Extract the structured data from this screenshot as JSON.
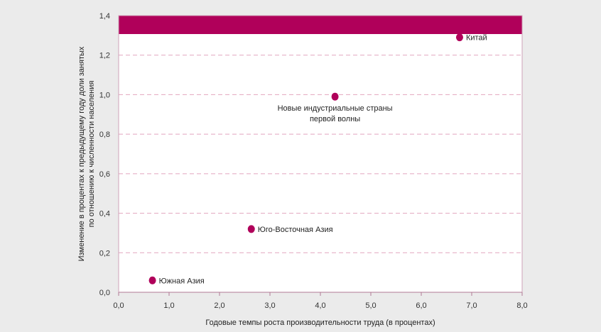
{
  "chart_data": {
    "type": "scatter",
    "title": "",
    "xlabel": "Годовые темпы роста производительности труда (в процентах)",
    "ylabel_lines": [
      "Изменение в процентах к предыдущему году доли занятых",
      "по отношению к численности населения"
    ],
    "xlim": [
      0,
      8
    ],
    "ylim": [
      0,
      1.4
    ],
    "x_ticks": [
      0,
      1,
      2,
      3,
      4,
      5,
      6,
      7,
      8
    ],
    "x_tick_labels": [
      "0,0",
      "1,0",
      "2,0",
      "3,0",
      "4,0",
      "5,0",
      "6,0",
      "7,0",
      "8,0"
    ],
    "y_ticks": [
      0,
      0.2,
      0.4,
      0.6,
      0.8,
      1.0,
      1.2,
      1.4
    ],
    "y_tick_labels": [
      "0,0",
      "0,2",
      "0,4",
      "0,6",
      "0,8",
      "1,0",
      "1,2",
      "1,4"
    ],
    "grid": "horizontal-dashed",
    "points": [
      {
        "x": 0.67,
        "y": 0.06,
        "label_lines": [
          "Южная Азия"
        ],
        "label_pos": "right"
      },
      {
        "x": 2.63,
        "y": 0.32,
        "label_lines": [
          "Юго-Восточная Азия"
        ],
        "label_pos": "right"
      },
      {
        "x": 4.29,
        "y": 0.99,
        "label_lines": [
          "Новые индустриальные страны",
          "первой волны"
        ],
        "label_pos": "below"
      },
      {
        "x": 6.76,
        "y": 1.29,
        "label_lines": [
          "Китай"
        ],
        "label_pos": "right"
      }
    ],
    "colors": {
      "point": "#b0005a",
      "top_band": "#b0005a",
      "grid": "#e2a5bf",
      "frame": "#cfa3b8",
      "plot_bg": "#ffffff",
      "page_bg": "#ebebeb"
    }
  }
}
